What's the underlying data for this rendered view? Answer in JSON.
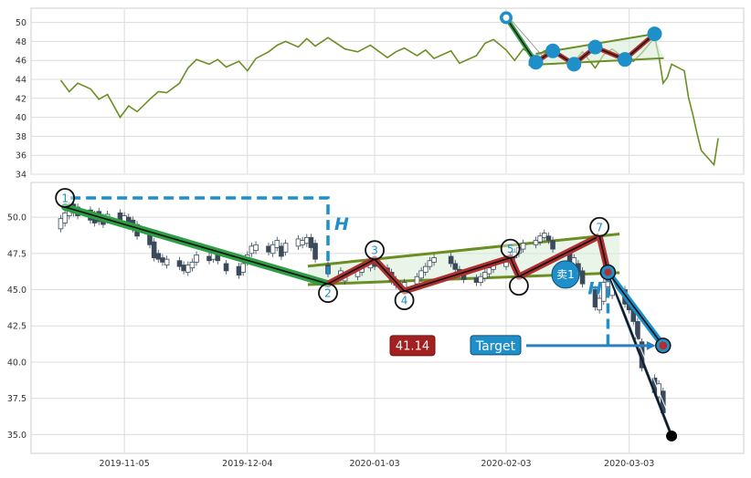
{
  "chart_data": [
    {
      "type": "line",
      "panel": "top",
      "title": "",
      "xlabel": "",
      "ylabel": "",
      "ylim": [
        34,
        51.5
      ],
      "yticks": [
        34,
        36,
        38,
        40,
        42,
        44,
        46,
        48,
        50
      ],
      "grid": true,
      "colors": {
        "line": "#6b8e23",
        "pattern_pos": "#1f8fc9",
        "pattern_line": "#b03030"
      },
      "series": [
        {
          "points": [
            [
              "2019-10-21",
              43.9
            ],
            [
              "2019-10-23",
              42.7
            ],
            [
              "2019-10-25",
              43.6
            ],
            [
              "2019-10-28",
              43.0
            ],
            [
              "2019-10-30",
              41.9
            ],
            [
              "2019-11-01",
              42.4
            ],
            [
              "2019-11-04",
              40.0
            ],
            [
              "2019-11-06",
              41.2
            ],
            [
              "2019-11-08",
              40.6
            ],
            [
              "2019-11-11",
              41.9
            ],
            [
              "2019-11-13",
              42.7
            ],
            [
              "2019-11-15",
              42.6
            ],
            [
              "2019-11-18",
              43.6
            ],
            [
              "2019-11-20",
              45.2
            ],
            [
              "2019-11-22",
              46.1
            ],
            [
              "2019-11-25",
              45.6
            ],
            [
              "2019-11-27",
              46.1
            ],
            [
              "2019-11-29",
              45.3
            ],
            [
              "2019-12-02",
              45.9
            ],
            [
              "2019-12-04",
              44.9
            ],
            [
              "2019-12-06",
              46.2
            ],
            [
              "2019-12-09",
              46.9
            ],
            [
              "2019-12-11",
              47.6
            ],
            [
              "2019-12-13",
              48.0
            ],
            [
              "2019-12-16",
              47.4
            ],
            [
              "2019-12-18",
              48.3
            ],
            [
              "2019-12-20",
              47.5
            ],
            [
              "2019-12-23",
              48.4
            ],
            [
              "2019-12-27",
              47.2
            ],
            [
              "2019-12-30",
              46.9
            ],
            [
              "2020-01-02",
              47.6
            ],
            [
              "2020-01-06",
              46.3
            ],
            [
              "2020-01-08",
              46.9
            ],
            [
              "2020-01-10",
              47.3
            ],
            [
              "2020-01-13",
              46.5
            ],
            [
              "2020-01-15",
              47.1
            ],
            [
              "2020-01-17",
              46.2
            ],
            [
              "2020-01-21",
              47.0
            ],
            [
              "2020-01-23",
              45.7
            ],
            [
              "2020-01-27",
              46.5
            ],
            [
              "2020-01-29",
              47.8
            ],
            [
              "2020-01-31",
              48.2
            ],
            [
              "2020-02-03",
              47.1
            ],
            [
              "2020-02-05",
              46.0
            ],
            [
              "2020-02-07",
              47.2
            ],
            [
              "2020-02-10",
              46.4
            ],
            [
              "2020-02-12",
              47.0
            ],
            [
              "2020-02-14",
              47.3
            ],
            [
              "2020-02-17",
              46.1
            ],
            [
              "2020-02-19",
              45.9
            ],
            [
              "2020-02-21",
              46.9
            ],
            [
              "2020-02-24",
              45.2
            ],
            [
              "2020-02-26",
              46.6
            ],
            [
              "2020-02-28",
              47.2
            ],
            [
              "2020-03-02",
              46.2
            ],
            [
              "2020-03-04",
              45.9
            ],
            [
              "2020-03-06",
              46.8
            ],
            [
              "2020-03-09",
              48.4
            ],
            [
              "2020-03-10",
              46.5
            ],
            [
              "2020-03-11",
              43.6
            ],
            [
              "2020-03-12",
              44.2
            ],
            [
              "2020-03-13",
              45.6
            ],
            [
              "2020-03-16",
              44.9
            ],
            [
              "2020-03-17",
              42.1
            ],
            [
              "2020-03-18",
              40.3
            ],
            [
              "2020-03-19",
              38.3
            ],
            [
              "2020-03-20",
              36.5
            ],
            [
              "2020-03-23",
              35.0
            ],
            [
              "2020-03-24",
              37.8
            ]
          ]
        }
      ],
      "pattern_points": [
        [
          "2020-02-03",
          50.5
        ],
        [
          "2020-02-10",
          45.8
        ],
        [
          "2020-02-14",
          47.0
        ],
        [
          "2020-02-19",
          45.6
        ],
        [
          "2020-02-24",
          47.4
        ],
        [
          "2020-03-02",
          46.1
        ],
        [
          "2020-03-09",
          48.8
        ]
      ]
    },
    {
      "type": "candlestick",
      "panel": "bottom",
      "title": "",
      "xlabel": "",
      "ylabel": "",
      "ylim": [
        33.7,
        52.4
      ],
      "yticks": [
        35.0,
        37.5,
        40.0,
        42.5,
        45.0,
        47.5,
        50.0
      ],
      "ytick_labels": [
        "35.0",
        "37.5",
        "40.0",
        "42.5",
        "45.0",
        "47.5",
        "50.0"
      ],
      "xlim": [
        "2019-10-14",
        "2020-03-30"
      ],
      "xticks": [
        "2019-11-05",
        "2019-12-04",
        "2020-01-03",
        "2020-02-03",
        "2020-03-03"
      ],
      "xtick_labels": [
        "2019-11-05",
        "2019-12-04",
        "2020-01-03",
        "2020-02-03",
        "2020-03-03"
      ],
      "grid": true,
      "colors": {
        "candle_down": "#3b4a5a",
        "candle_up": "#ffffff",
        "downtrend": "#2e9e45",
        "zigzag": "#b03030",
        "channel": "#6b8e23",
        "channel_fill": "#d8ecd8",
        "measure": "#1f8fc9",
        "target_arrow": "#2a7fbf",
        "label_red": "#a32020",
        "label_blue": "#1f8fc9"
      },
      "candles": [
        [
          "2019-10-21",
          49.2,
          49.9
        ],
        [
          "2019-10-22",
          49.6,
          50.3
        ],
        [
          "2019-10-23",
          50.1,
          50.8
        ],
        [
          "2019-10-24",
          50.9,
          50.3
        ],
        [
          "2019-10-25",
          50.7,
          50.1
        ],
        [
          "2019-10-28",
          50.5,
          49.8
        ],
        [
          "2019-10-29",
          50.2,
          49.6
        ],
        [
          "2019-10-30",
          50.4,
          49.7
        ],
        [
          "2019-10-31",
          50.0,
          49.5
        ],
        [
          "2019-11-01",
          49.8,
          50.2
        ],
        [
          "2019-11-04",
          50.3,
          49.6
        ],
        [
          "2019-11-05",
          49.7,
          50.1
        ],
        [
          "2019-11-06",
          50.0,
          49.4
        ],
        [
          "2019-11-07",
          49.8,
          49.2
        ],
        [
          "2019-11-08",
          49.5,
          48.7
        ],
        [
          "2019-11-11",
          48.9,
          48.1
        ],
        [
          "2019-11-12",
          48.3,
          47.2
        ],
        [
          "2019-11-13",
          47.5,
          47.1
        ],
        [
          "2019-11-14",
          47.2,
          46.9
        ],
        [
          "2019-11-15",
          46.7,
          47.1
        ],
        [
          "2019-11-18",
          47.0,
          46.6
        ],
        [
          "2019-11-19",
          46.7,
          46.3
        ],
        [
          "2019-11-20",
          46.2,
          46.7
        ],
        [
          "2019-11-21",
          46.5,
          46.9
        ],
        [
          "2019-11-22",
          46.9,
          47.4
        ],
        [
          "2019-11-25",
          47.3,
          47.0
        ],
        [
          "2019-11-26",
          47.1,
          47.6
        ],
        [
          "2019-11-27",
          47.4,
          47.0
        ],
        [
          "2019-11-29",
          46.8,
          46.3
        ],
        [
          "2019-12-02",
          46.6,
          46.0
        ],
        [
          "2019-12-03",
          46.2,
          46.8
        ],
        [
          "2019-12-04",
          46.9,
          47.4
        ],
        [
          "2019-12-05",
          47.5,
          48.0
        ],
        [
          "2019-12-06",
          47.7,
          48.1
        ],
        [
          "2019-12-09",
          48.0,
          47.6
        ],
        [
          "2019-12-10",
          47.5,
          48.1
        ],
        [
          "2019-12-11",
          47.9,
          48.4
        ],
        [
          "2019-12-12",
          48.0,
          47.3
        ],
        [
          "2019-12-13",
          47.6,
          48.2
        ],
        [
          "2019-12-16",
          48.0,
          48.5
        ],
        [
          "2019-12-17",
          48.1,
          48.4
        ],
        [
          "2019-12-18",
          48.2,
          48.6
        ],
        [
          "2019-12-19",
          48.6,
          47.9
        ],
        [
          "2019-12-20",
          48.2,
          47.1
        ],
        [
          "2019-12-23",
          46.7,
          46.1
        ],
        [
          "2019-12-26",
          45.8,
          46.3
        ],
        [
          "2019-12-27",
          45.6,
          45.9
        ],
        [
          "2019-12-30",
          45.9,
          46.4
        ],
        [
          "2019-12-31",
          46.2,
          46.6
        ],
        [
          "2020-01-02",
          46.5,
          46.9
        ],
        [
          "2020-01-03",
          47.0,
          46.6
        ],
        [
          "2020-01-06",
          46.5,
          46.1
        ],
        [
          "2020-01-07",
          46.2,
          45.6
        ],
        [
          "2020-01-08",
          45.7,
          45.3
        ],
        [
          "2020-01-09",
          45.4,
          45.1
        ],
        [
          "2020-01-10",
          45.1,
          45.5
        ],
        [
          "2020-01-13",
          45.4,
          45.9
        ],
        [
          "2020-01-14",
          45.8,
          46.3
        ],
        [
          "2020-01-15",
          46.2,
          46.6
        ],
        [
          "2020-01-16",
          46.6,
          47.0
        ],
        [
          "2020-01-17",
          46.9,
          47.2
        ],
        [
          "2020-01-21",
          47.3,
          46.8
        ],
        [
          "2020-01-22",
          46.8,
          46.4
        ],
        [
          "2020-01-23",
          46.4,
          46.0
        ],
        [
          "2020-01-24",
          46.0,
          45.7
        ],
        [
          "2020-01-27",
          45.8,
          45.5
        ],
        [
          "2020-01-28",
          45.5,
          45.9
        ],
        [
          "2020-01-29",
          45.8,
          46.2
        ],
        [
          "2020-01-30",
          46.1,
          46.5
        ],
        [
          "2020-01-31",
          46.4,
          46.7
        ],
        [
          "2020-02-03",
          46.6,
          46.9
        ],
        [
          "2020-02-04",
          47.0,
          47.3
        ],
        [
          "2020-02-05",
          47.2,
          47.6
        ],
        [
          "2020-02-06",
          47.5,
          47.9
        ],
        [
          "2020-02-07",
          47.8,
          48.2
        ],
        [
          "2020-02-10",
          48.1,
          48.4
        ],
        [
          "2020-02-11",
          48.3,
          48.7
        ],
        [
          "2020-02-12",
          48.6,
          48.9
        ],
        [
          "2020-02-13",
          48.7,
          48.4
        ],
        [
          "2020-02-14",
          48.4,
          47.8
        ],
        [
          "2020-02-18",
          47.6,
          46.8
        ],
        [
          "2020-02-19",
          46.6,
          47.2
        ],
        [
          "2020-02-20",
          46.8,
          46.2
        ],
        [
          "2020-02-21",
          46.3,
          45.4
        ],
        [
          "2020-02-24",
          45.0,
          43.8
        ],
        [
          "2020-02-25",
          43.6,
          44.4
        ],
        [
          "2020-02-26",
          44.2,
          45.5
        ],
        [
          "2020-02-27",
          45.2,
          46.6
        ],
        [
          "2020-02-28",
          44.6,
          45.6
        ],
        [
          "2020-03-02",
          45.0,
          44.0
        ],
        [
          "2020-03-03",
          44.2,
          43.6
        ],
        [
          "2020-03-04",
          43.8,
          42.8
        ],
        [
          "2020-03-05",
          42.8,
          41.6
        ],
        [
          "2020-03-06",
          41.4,
          39.6
        ],
        [
          "2020-03-09",
          38.9,
          37.9
        ],
        [
          "2020-03-10",
          37.6,
          38.5
        ],
        [
          "2020-03-11",
          38.0,
          36.5
        ]
      ],
      "pattern_points": [
        [
          "2019-10-22",
          50.7
        ],
        [
          "2019-12-23",
          45.4
        ],
        [
          "2020-01-03",
          47.1
        ],
        [
          "2020-01-10",
          44.9
        ],
        [
          "2020-02-04",
          47.2
        ],
        [
          "2020-02-06",
          45.9
        ],
        [
          "2020-02-25",
          48.7
        ]
      ],
      "pattern_labels": [
        "1",
        "2",
        "3",
        "4",
        "5",
        "",
        "7"
      ],
      "sell_marker": {
        "date": "2020-02-17",
        "value": 46.3,
        "label": "卖1"
      },
      "target_point": [
        "2020-03-11",
        41.14
      ],
      "end_point": [
        "2020-03-13",
        34.9
      ],
      "measure_label": "H",
      "target_value_label": "41.14",
      "target_label": "Target"
    }
  ]
}
